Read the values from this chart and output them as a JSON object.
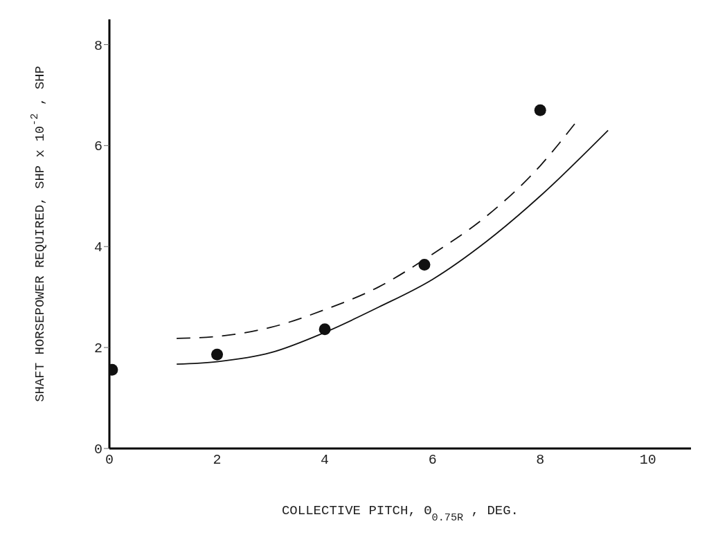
{
  "chart_data": {
    "type": "scatter",
    "xlabel": "COLLECTIVE PITCH, Θ$_{0.75R}$, DEG.",
    "ylabel": "SHAFT HORSEPOWER REQUIRED, SHP x 10$^{-2}$, SHP",
    "xlim": [
      0,
      10.8
    ],
    "ylim": [
      0,
      8.5
    ],
    "xticks": [
      0,
      2,
      4,
      6,
      8,
      10
    ],
    "yticks": [
      0,
      2,
      4,
      6,
      8
    ],
    "grid": false,
    "legend": false,
    "series": [
      {
        "color": "#111111",
        "marker": "circle",
        "x": [
          0.05,
          2,
          4,
          5.85,
          8
        ],
        "values": [
          1.56,
          1.86,
          2.36,
          3.64,
          6.7
        ]
      },
      {
        "type": "line",
        "color": "#111111",
        "marker": "none",
        "line_style": "solid",
        "x": [
          1.25,
          2,
          3,
          4,
          5,
          6,
          7,
          8,
          9.26
        ],
        "values": [
          1.67,
          1.72,
          1.9,
          2.3,
          2.8,
          3.35,
          4.1,
          5.0,
          6.3
        ]
      },
      {
        "type": "line",
        "color": "#111111",
        "marker": "none",
        "line_style": "dashed",
        "x": [
          1.25,
          2,
          3,
          4,
          5,
          6,
          7,
          8,
          8.64
        ],
        "values": [
          2.18,
          2.22,
          2.4,
          2.75,
          3.2,
          3.85,
          4.6,
          5.6,
          6.43
        ]
      }
    ]
  }
}
